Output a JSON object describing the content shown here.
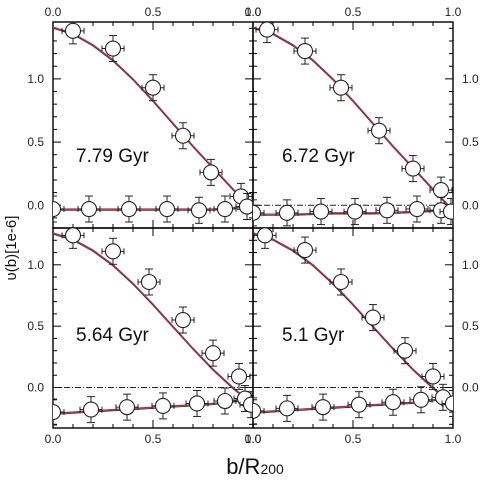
{
  "chart_data": {
    "type": "scatter",
    "xlabel": "b/R",
    "xlabel_sub": "200",
    "ylabel": "υ(b)[1e-6]",
    "xlim": [
      0.0,
      1.0
    ],
    "xticks": [
      "0.0",
      "0.5",
      "1.0"
    ],
    "panels": [
      {
        "label": "7.79 Gyr",
        "ylim": [
          -0.18,
          1.45
        ],
        "yticks": [
          "0.0",
          "0.5",
          "1.0"
        ],
        "yaxis_side": "left",
        "zero_line": false,
        "curve_upper": [
          [
            0.0,
            1.41
          ],
          [
            0.1,
            1.36
          ],
          [
            0.2,
            1.27
          ],
          [
            0.3,
            1.15
          ],
          [
            0.4,
            1.0
          ],
          [
            0.5,
            0.83
          ],
          [
            0.6,
            0.65
          ],
          [
            0.7,
            0.47
          ],
          [
            0.8,
            0.3
          ],
          [
            0.9,
            0.13
          ],
          [
            0.96,
            0.03
          ],
          [
            1.0,
            -0.04
          ]
        ],
        "curve_lower": [
          [
            0.0,
            -0.03
          ],
          [
            0.2,
            -0.03
          ],
          [
            0.4,
            -0.03
          ],
          [
            0.6,
            -0.03
          ],
          [
            0.8,
            -0.03
          ],
          [
            0.9,
            -0.02
          ],
          [
            0.96,
            0.0
          ],
          [
            1.0,
            0.01
          ]
        ],
        "points_upper": [
          [
            0.1,
            1.38
          ],
          [
            0.3,
            1.24
          ],
          [
            0.5,
            0.93
          ],
          [
            0.65,
            0.55
          ],
          [
            0.79,
            0.26
          ],
          [
            0.94,
            0.07
          ]
        ],
        "points_lower": [
          [
            0.0,
            -0.03
          ],
          [
            0.18,
            -0.03
          ],
          [
            0.38,
            -0.03
          ],
          [
            0.57,
            -0.03
          ],
          [
            0.73,
            -0.04
          ],
          [
            0.86,
            -0.03
          ],
          [
            0.97,
            -0.01
          ]
        ]
      },
      {
        "label": "6.72 Gyr",
        "ylim": [
          -0.18,
          1.45
        ],
        "yticks": [
          "0.0",
          "0.5",
          "1.0"
        ],
        "yaxis_side": "right",
        "zero_line": true,
        "curve_upper": [
          [
            0.0,
            1.41
          ],
          [
            0.1,
            1.36
          ],
          [
            0.2,
            1.27
          ],
          [
            0.3,
            1.15
          ],
          [
            0.4,
            1.0
          ],
          [
            0.5,
            0.83
          ],
          [
            0.6,
            0.65
          ],
          [
            0.7,
            0.47
          ],
          [
            0.8,
            0.3
          ],
          [
            0.9,
            0.13
          ],
          [
            0.96,
            0.03
          ],
          [
            1.0,
            -0.04
          ]
        ],
        "curve_lower": [
          [
            0.0,
            -0.07
          ],
          [
            0.2,
            -0.07
          ],
          [
            0.4,
            -0.06
          ],
          [
            0.6,
            -0.06
          ],
          [
            0.8,
            -0.05
          ],
          [
            0.9,
            -0.04
          ],
          [
            0.96,
            -0.03
          ],
          [
            1.0,
            -0.04
          ]
        ],
        "points_upper": [
          [
            0.07,
            1.39
          ],
          [
            0.26,
            1.22
          ],
          [
            0.44,
            0.93
          ],
          [
            0.63,
            0.59
          ],
          [
            0.8,
            0.29
          ],
          [
            0.94,
            0.12
          ]
        ],
        "points_lower": [
          [
            0.0,
            -0.06
          ],
          [
            0.17,
            -0.06
          ],
          [
            0.34,
            -0.05
          ],
          [
            0.51,
            -0.05
          ],
          [
            0.67,
            -0.04
          ],
          [
            0.82,
            -0.03
          ],
          [
            0.94,
            -0.04
          ],
          [
            0.99,
            -0.05
          ]
        ]
      },
      {
        "label": "5.64 Gyr",
        "ylim": [
          -0.33,
          1.3
        ],
        "yticks": [
          "0.0",
          "0.5",
          "1.0"
        ],
        "yaxis_side": "left",
        "zero_line": true,
        "curve_upper": [
          [
            0.0,
            1.26
          ],
          [
            0.1,
            1.21
          ],
          [
            0.2,
            1.12
          ],
          [
            0.3,
            1.0
          ],
          [
            0.4,
            0.85
          ],
          [
            0.5,
            0.68
          ],
          [
            0.6,
            0.5
          ],
          [
            0.7,
            0.32
          ],
          [
            0.8,
            0.15
          ],
          [
            0.9,
            0.0
          ],
          [
            0.96,
            -0.08
          ],
          [
            1.0,
            -0.15
          ]
        ],
        "curve_lower": [
          [
            0.0,
            -0.21
          ],
          [
            0.2,
            -0.19
          ],
          [
            0.4,
            -0.17
          ],
          [
            0.6,
            -0.15
          ],
          [
            0.8,
            -0.13
          ],
          [
            0.9,
            -0.11
          ],
          [
            0.96,
            -0.09
          ],
          [
            1.0,
            -0.12
          ]
        ],
        "points_upper": [
          [
            0.1,
            1.24
          ],
          [
            0.3,
            1.11
          ],
          [
            0.48,
            0.86
          ],
          [
            0.65,
            0.55
          ],
          [
            0.8,
            0.28
          ],
          [
            0.93,
            0.09
          ]
        ],
        "points_lower": [
          [
            0.0,
            -0.2
          ],
          [
            0.19,
            -0.18
          ],
          [
            0.37,
            -0.16
          ],
          [
            0.55,
            -0.15
          ],
          [
            0.72,
            -0.13
          ],
          [
            0.86,
            -0.11
          ],
          [
            0.96,
            -0.09
          ],
          [
            0.99,
            -0.14
          ]
        ]
      },
      {
        "label": "5.1 Gyr",
        "ylim": [
          -0.33,
          1.3
        ],
        "yticks": [
          "0.0",
          "0.5",
          "1.0"
        ],
        "yaxis_side": "right",
        "zero_line": true,
        "curve_upper": [
          [
            0.0,
            1.26
          ],
          [
            0.1,
            1.21
          ],
          [
            0.2,
            1.12
          ],
          [
            0.3,
            1.0
          ],
          [
            0.4,
            0.85
          ],
          [
            0.5,
            0.68
          ],
          [
            0.6,
            0.5
          ],
          [
            0.7,
            0.32
          ],
          [
            0.8,
            0.15
          ],
          [
            0.9,
            0.0
          ],
          [
            0.96,
            -0.08
          ],
          [
            1.0,
            -0.15
          ]
        ],
        "curve_lower": [
          [
            0.0,
            -0.2
          ],
          [
            0.2,
            -0.18
          ],
          [
            0.4,
            -0.16
          ],
          [
            0.6,
            -0.14
          ],
          [
            0.8,
            -0.12
          ],
          [
            0.9,
            -0.1
          ],
          [
            0.96,
            -0.08
          ],
          [
            1.0,
            -0.12
          ]
        ],
        "points_upper": [
          [
            0.06,
            1.24
          ],
          [
            0.26,
            1.12
          ],
          [
            0.44,
            0.86
          ],
          [
            0.6,
            0.57
          ],
          [
            0.76,
            0.3
          ],
          [
            0.9,
            0.09
          ]
        ],
        "points_lower": [
          [
            0.0,
            -0.19
          ],
          [
            0.17,
            -0.17
          ],
          [
            0.35,
            -0.16
          ],
          [
            0.53,
            -0.14
          ],
          [
            0.7,
            -0.12
          ],
          [
            0.84,
            -0.1
          ],
          [
            0.95,
            -0.08
          ],
          [
            1.0,
            -0.13
          ]
        ]
      }
    ],
    "colors": {
      "model": "#b03040",
      "model_alt": "#3a3a3a",
      "marker": "#222222",
      "zero_line": "#222222"
    }
  }
}
